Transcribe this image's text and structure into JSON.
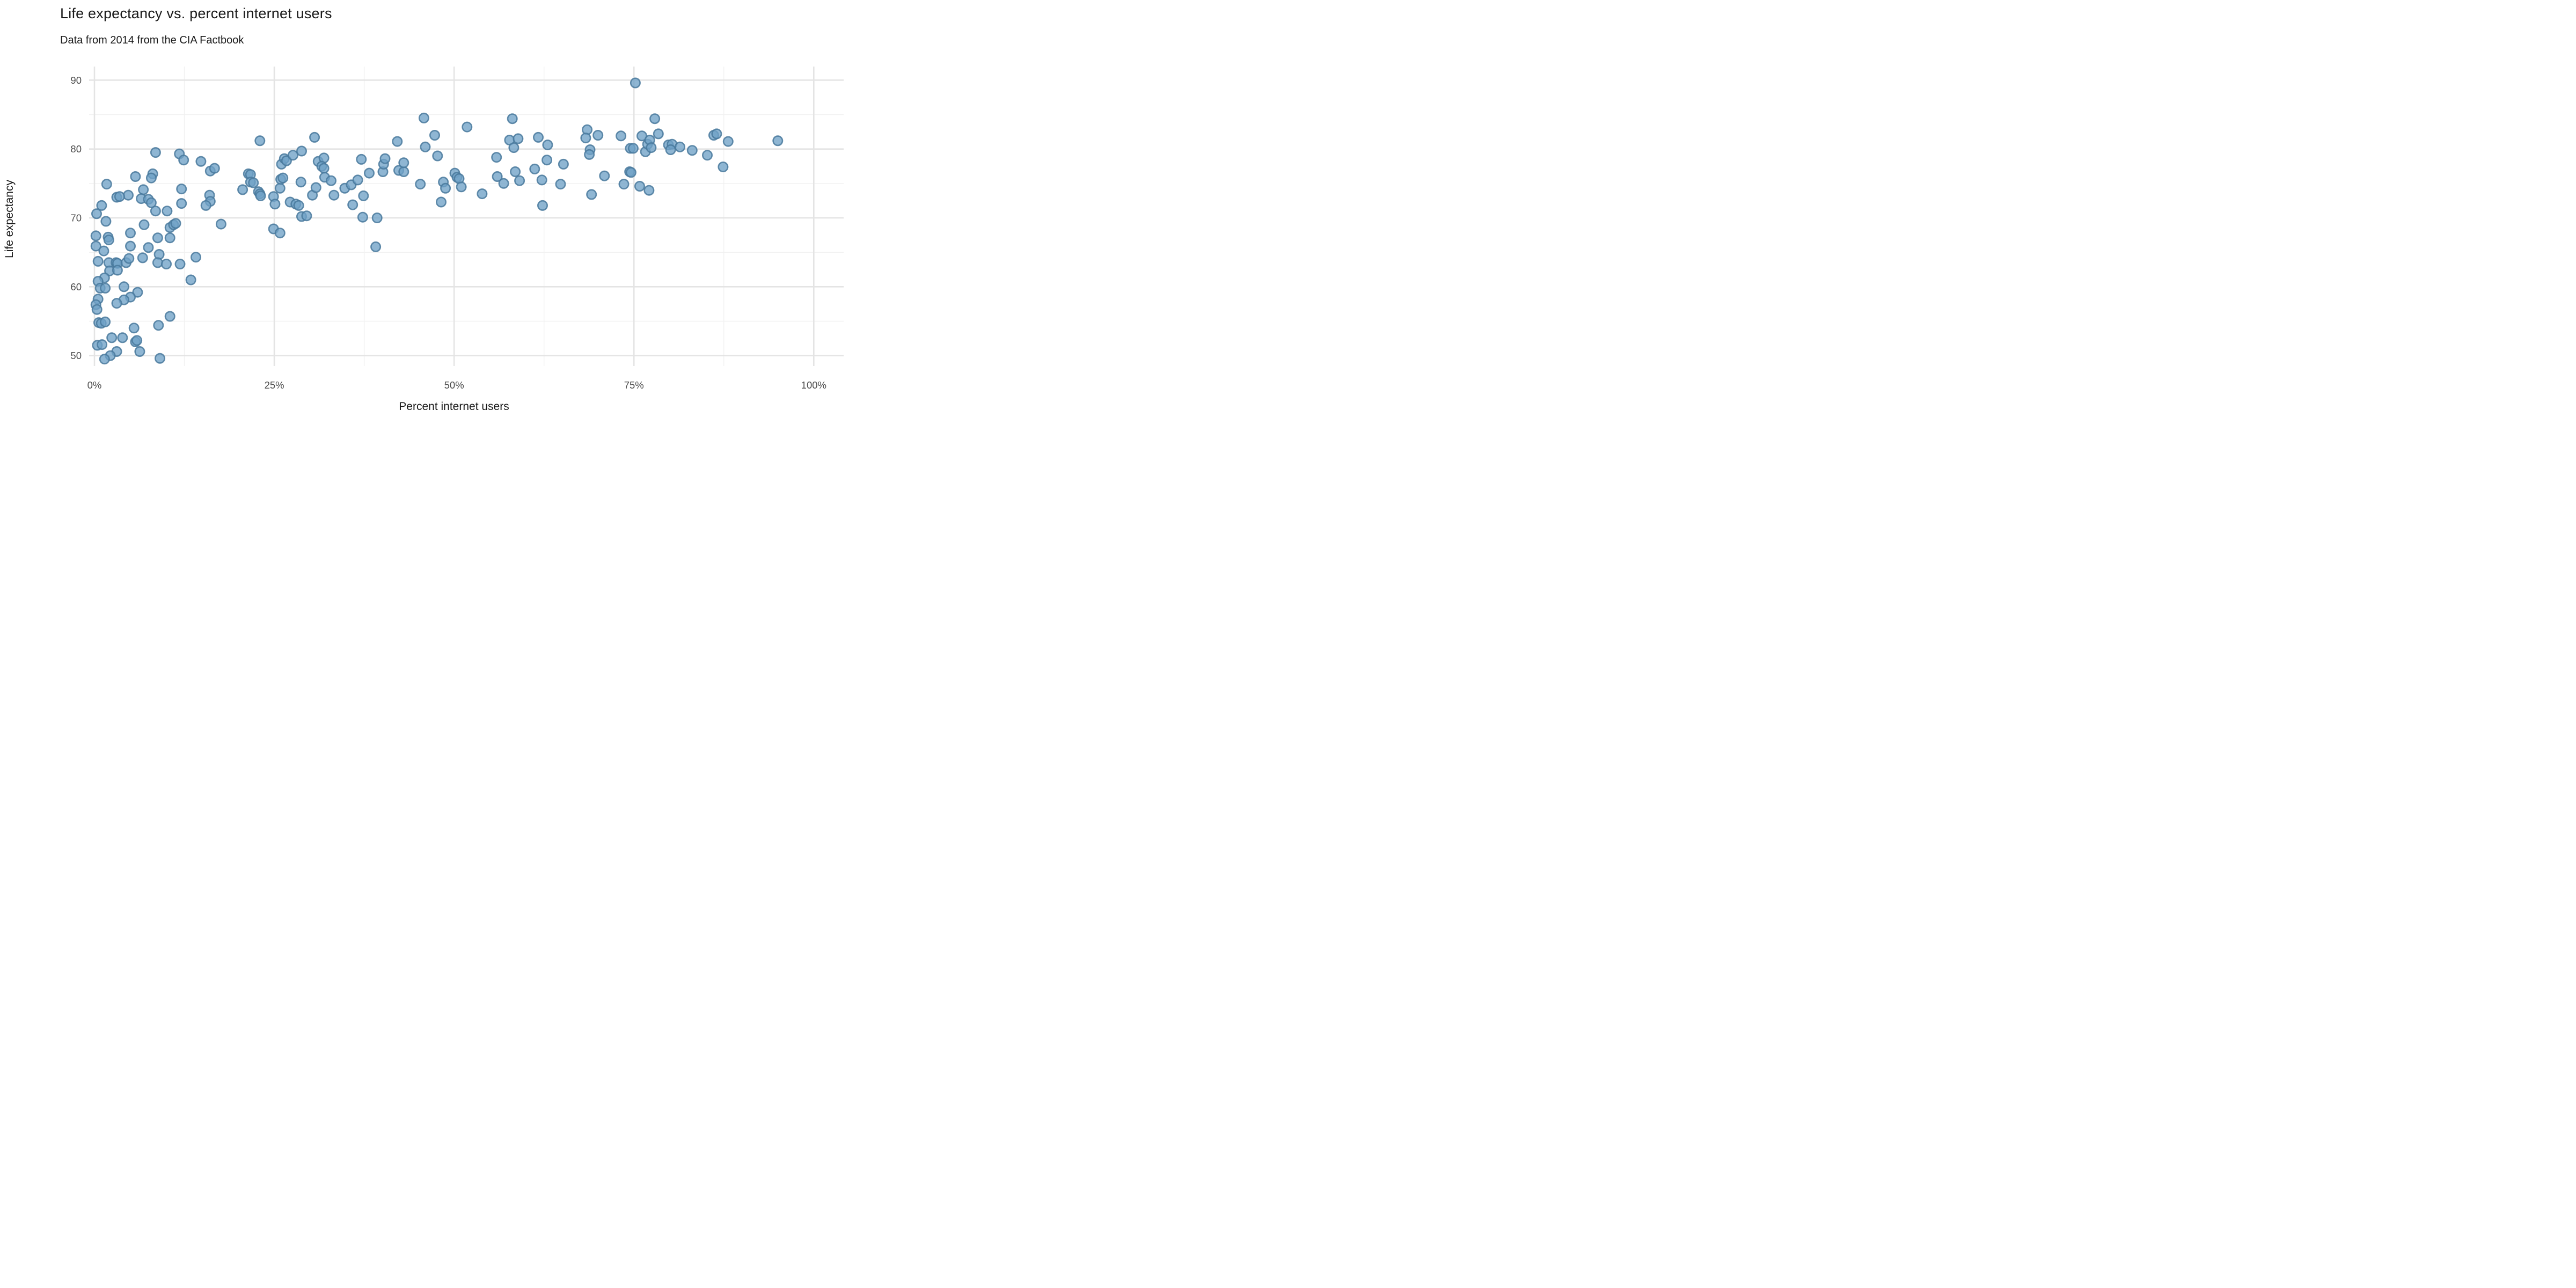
{
  "header": {
    "title": "Life expectancy vs. percent internet users",
    "subtitle": "Data from 2014 from the CIA Factbook"
  },
  "chart_data": {
    "type": "scatter",
    "title": "Life expectancy vs. percent internet users",
    "subtitle": "Data from 2014 from the CIA Factbook",
    "xlabel": "Percent internet users",
    "ylabel": "Life expectancy",
    "legend": "none",
    "grid": "on",
    "x_tick_values": [
      0,
      25,
      50,
      75,
      100
    ],
    "x_tick_labels": [
      "0%",
      "25%",
      "50%",
      "75%",
      "100%"
    ],
    "x_minor_ticks": [
      12.5,
      37.5,
      62.5,
      87.5
    ],
    "y_tick_values": [
      50,
      60,
      70,
      80,
      90
    ],
    "y_tick_labels": [
      "50",
      "60",
      "70",
      "80",
      "90"
    ],
    "y_minor_ticks": [
      55,
      65,
      75,
      85
    ],
    "xlim": [
      -0.746,
      104.154
    ],
    "ylim": [
      48.494,
      91.975
    ],
    "points": [
      [
        8.5,
        79.5
      ],
      [
        11.8,
        79.3
      ],
      [
        12.4,
        78.4
      ],
      [
        14.8,
        78.2
      ],
      [
        16.1,
        76.8
      ],
      [
        16.7,
        77.2
      ],
      [
        5.7,
        76.0
      ],
      [
        8.1,
        76.4
      ],
      [
        7.9,
        75.8
      ],
      [
        1.7,
        74.9
      ],
      [
        6.8,
        74.1
      ],
      [
        12.1,
        74.2
      ],
      [
        4.7,
        73.3
      ],
      [
        3.1,
        73.0
      ],
      [
        3.5,
        73.1
      ],
      [
        6.5,
        72.8
      ],
      [
        7.5,
        72.7
      ],
      [
        7.9,
        72.2
      ],
      [
        8.5,
        71.0
      ],
      [
        10.1,
        71.0
      ],
      [
        16.0,
        73.3
      ],
      [
        16.1,
        72.4
      ],
      [
        15.5,
        71.8
      ],
      [
        12.1,
        72.1
      ],
      [
        1.0,
        71.8
      ],
      [
        0.3,
        70.6
      ],
      [
        1.6,
        69.5
      ],
      [
        6.9,
        69.0
      ],
      [
        10.5,
        68.6
      ],
      [
        11.0,
        69.0
      ],
      [
        11.3,
        69.2
      ],
      [
        17.6,
        69.1
      ],
      [
        5.0,
        67.8
      ],
      [
        0.2,
        67.4
      ],
      [
        1.9,
        67.2
      ],
      [
        2.0,
        66.8
      ],
      [
        8.8,
        67.1
      ],
      [
        10.5,
        67.1
      ],
      [
        0.2,
        65.9
      ],
      [
        5.0,
        65.9
      ],
      [
        7.5,
        65.7
      ],
      [
        1.3,
        65.2
      ],
      [
        9.0,
        64.7
      ],
      [
        6.7,
        64.2
      ],
      [
        14.1,
        64.3
      ],
      [
        0.5,
        63.7
      ],
      [
        2.0,
        63.5
      ],
      [
        3.0,
        63.5
      ],
      [
        3.2,
        63.4
      ],
      [
        4.4,
        63.5
      ],
      [
        4.8,
        64.1
      ],
      [
        8.8,
        63.5
      ],
      [
        10.0,
        63.3
      ],
      [
        11.9,
        63.3
      ],
      [
        2.1,
        62.3
      ],
      [
        3.2,
        62.4
      ],
      [
        1.4,
        61.3
      ],
      [
        0.5,
        60.8
      ],
      [
        13.4,
        61.0
      ],
      [
        4.1,
        60.0
      ],
      [
        0.8,
        59.8
      ],
      [
        1.5,
        59.8
      ],
      [
        6.0,
        59.2
      ],
      [
        5.0,
        58.5
      ],
      [
        4.1,
        58.1
      ],
      [
        3.1,
        57.6
      ],
      [
        0.5,
        58.2
      ],
      [
        0.2,
        57.4
      ],
      [
        0.35,
        56.7
      ],
      [
        10.5,
        55.7
      ],
      [
        0.6,
        54.8
      ],
      [
        0.95,
        54.7
      ],
      [
        1.5,
        54.9
      ],
      [
        5.5,
        54.0
      ],
      [
        8.9,
        54.4
      ],
      [
        2.4,
        52.6
      ],
      [
        3.9,
        52.6
      ],
      [
        5.7,
        52.0
      ],
      [
        5.9,
        52.2
      ],
      [
        0.4,
        51.5
      ],
      [
        1.05,
        51.6
      ],
      [
        3.1,
        50.6
      ],
      [
        6.3,
        50.6
      ],
      [
        2.2,
        50.0
      ],
      [
        1.4,
        49.5
      ],
      [
        9.1,
        49.6
      ],
      [
        20.6,
        74.1
      ],
      [
        21.4,
        76.4
      ],
      [
        21.7,
        76.3
      ],
      [
        21.7,
        75.2
      ],
      [
        22.1,
        75.1
      ],
      [
        22.8,
        73.8
      ],
      [
        23.0,
        73.5
      ],
      [
        23.1,
        73.2
      ],
      [
        23.0,
        81.2
      ],
      [
        24.9,
        73.1
      ],
      [
        25.1,
        72.0
      ],
      [
        24.9,
        68.4
      ],
      [
        25.8,
        67.8
      ],
      [
        25.8,
        74.3
      ],
      [
        25.9,
        75.6
      ],
      [
        26.2,
        75.8
      ],
      [
        26.0,
        77.8
      ],
      [
        26.4,
        78.6
      ],
      [
        26.7,
        78.3
      ],
      [
        27.6,
        79.1
      ],
      [
        28.7,
        75.2
      ],
      [
        28.8,
        79.7
      ],
      [
        27.2,
        72.3
      ],
      [
        28.0,
        72.0
      ],
      [
        28.4,
        71.8
      ],
      [
        28.8,
        70.2
      ],
      [
        29.5,
        70.3
      ],
      [
        30.3,
        73.3
      ],
      [
        30.8,
        74.4
      ],
      [
        30.6,
        81.7
      ],
      [
        31.1,
        78.2
      ],
      [
        31.9,
        78.7
      ],
      [
        31.6,
        77.5
      ],
      [
        31.9,
        77.2
      ],
      [
        32.0,
        75.9
      ],
      [
        32.9,
        75.4
      ],
      [
        33.3,
        73.3
      ],
      [
        34.8,
        74.3
      ],
      [
        35.7,
        74.8
      ],
      [
        35.9,
        71.9
      ],
      [
        36.6,
        75.5
      ],
      [
        37.1,
        78.5
      ],
      [
        37.4,
        73.2
      ],
      [
        37.3,
        70.1
      ],
      [
        39.3,
        70.0
      ],
      [
        38.2,
        76.5
      ],
      [
        39.1,
        65.8
      ],
      [
        40.1,
        76.7
      ],
      [
        40.2,
        77.8
      ],
      [
        40.4,
        78.6
      ],
      [
        42.1,
        81.1
      ],
      [
        42.3,
        76.9
      ],
      [
        43.0,
        76.7
      ],
      [
        43.0,
        78.0
      ],
      [
        45.3,
        74.9
      ],
      [
        45.8,
        84.5
      ],
      [
        46.0,
        80.3
      ],
      [
        47.3,
        82.0
      ],
      [
        47.7,
        79.0
      ],
      [
        48.2,
        72.3
      ],
      [
        48.5,
        75.2
      ],
      [
        48.8,
        74.3
      ],
      [
        50.1,
        76.5
      ],
      [
        50.4,
        75.9
      ],
      [
        50.7,
        75.7
      ],
      [
        51.0,
        74.5
      ],
      [
        51.8,
        83.2
      ],
      [
        53.9,
        73.5
      ],
      [
        56.0,
        76.0
      ],
      [
        56.9,
        75.0
      ],
      [
        55.9,
        78.8
      ],
      [
        57.7,
        81.3
      ],
      [
        58.9,
        81.5
      ],
      [
        58.1,
        84.4
      ],
      [
        58.3,
        80.2
      ],
      [
        58.5,
        76.7
      ],
      [
        59.1,
        75.4
      ],
      [
        61.2,
        77.1
      ],
      [
        61.7,
        81.7
      ],
      [
        62.2,
        75.5
      ],
      [
        62.3,
        71.8
      ],
      [
        62.9,
        78.4
      ],
      [
        63.0,
        80.6
      ],
      [
        64.8,
        74.9
      ],
      [
        65.2,
        77.8
      ],
      [
        68.5,
        82.8
      ],
      [
        70.0,
        82.0
      ],
      [
        68.3,
        81.6
      ],
      [
        68.9,
        79.9
      ],
      [
        68.8,
        79.2
      ],
      [
        69.1,
        73.4
      ],
      [
        70.9,
        76.1
      ],
      [
        73.2,
        81.9
      ],
      [
        73.6,
        74.9
      ],
      [
        74.4,
        76.7
      ],
      [
        74.6,
        76.6
      ],
      [
        74.5,
        80.1
      ],
      [
        74.9,
        80.1
      ],
      [
        75.2,
        89.6
      ],
      [
        75.8,
        74.6
      ],
      [
        76.1,
        81.9
      ],
      [
        76.6,
        79.6
      ],
      [
        76.9,
        80.7
      ],
      [
        77.2,
        81.3
      ],
      [
        77.4,
        80.2
      ],
      [
        77.1,
        74.0
      ],
      [
        77.9,
        84.4
      ],
      [
        78.4,
        82.2
      ],
      [
        79.8,
        80.6
      ],
      [
        80.3,
        80.7
      ],
      [
        80.1,
        79.9
      ],
      [
        81.4,
        80.3
      ],
      [
        83.1,
        79.8
      ],
      [
        85.2,
        79.1
      ],
      [
        86.1,
        82.0
      ],
      [
        86.5,
        82.2
      ],
      [
        87.4,
        77.4
      ],
      [
        88.1,
        81.1
      ],
      [
        95.0,
        81.2
      ]
    ]
  },
  "colors": {
    "background": "#ffffff",
    "grid_major": "#e4e4e4",
    "grid_minor": "#f1f1f1",
    "point_fill": "#70a1c6",
    "point_stroke": "#49799c",
    "tick_text": "#4d4d4d",
    "text": "#191919"
  }
}
